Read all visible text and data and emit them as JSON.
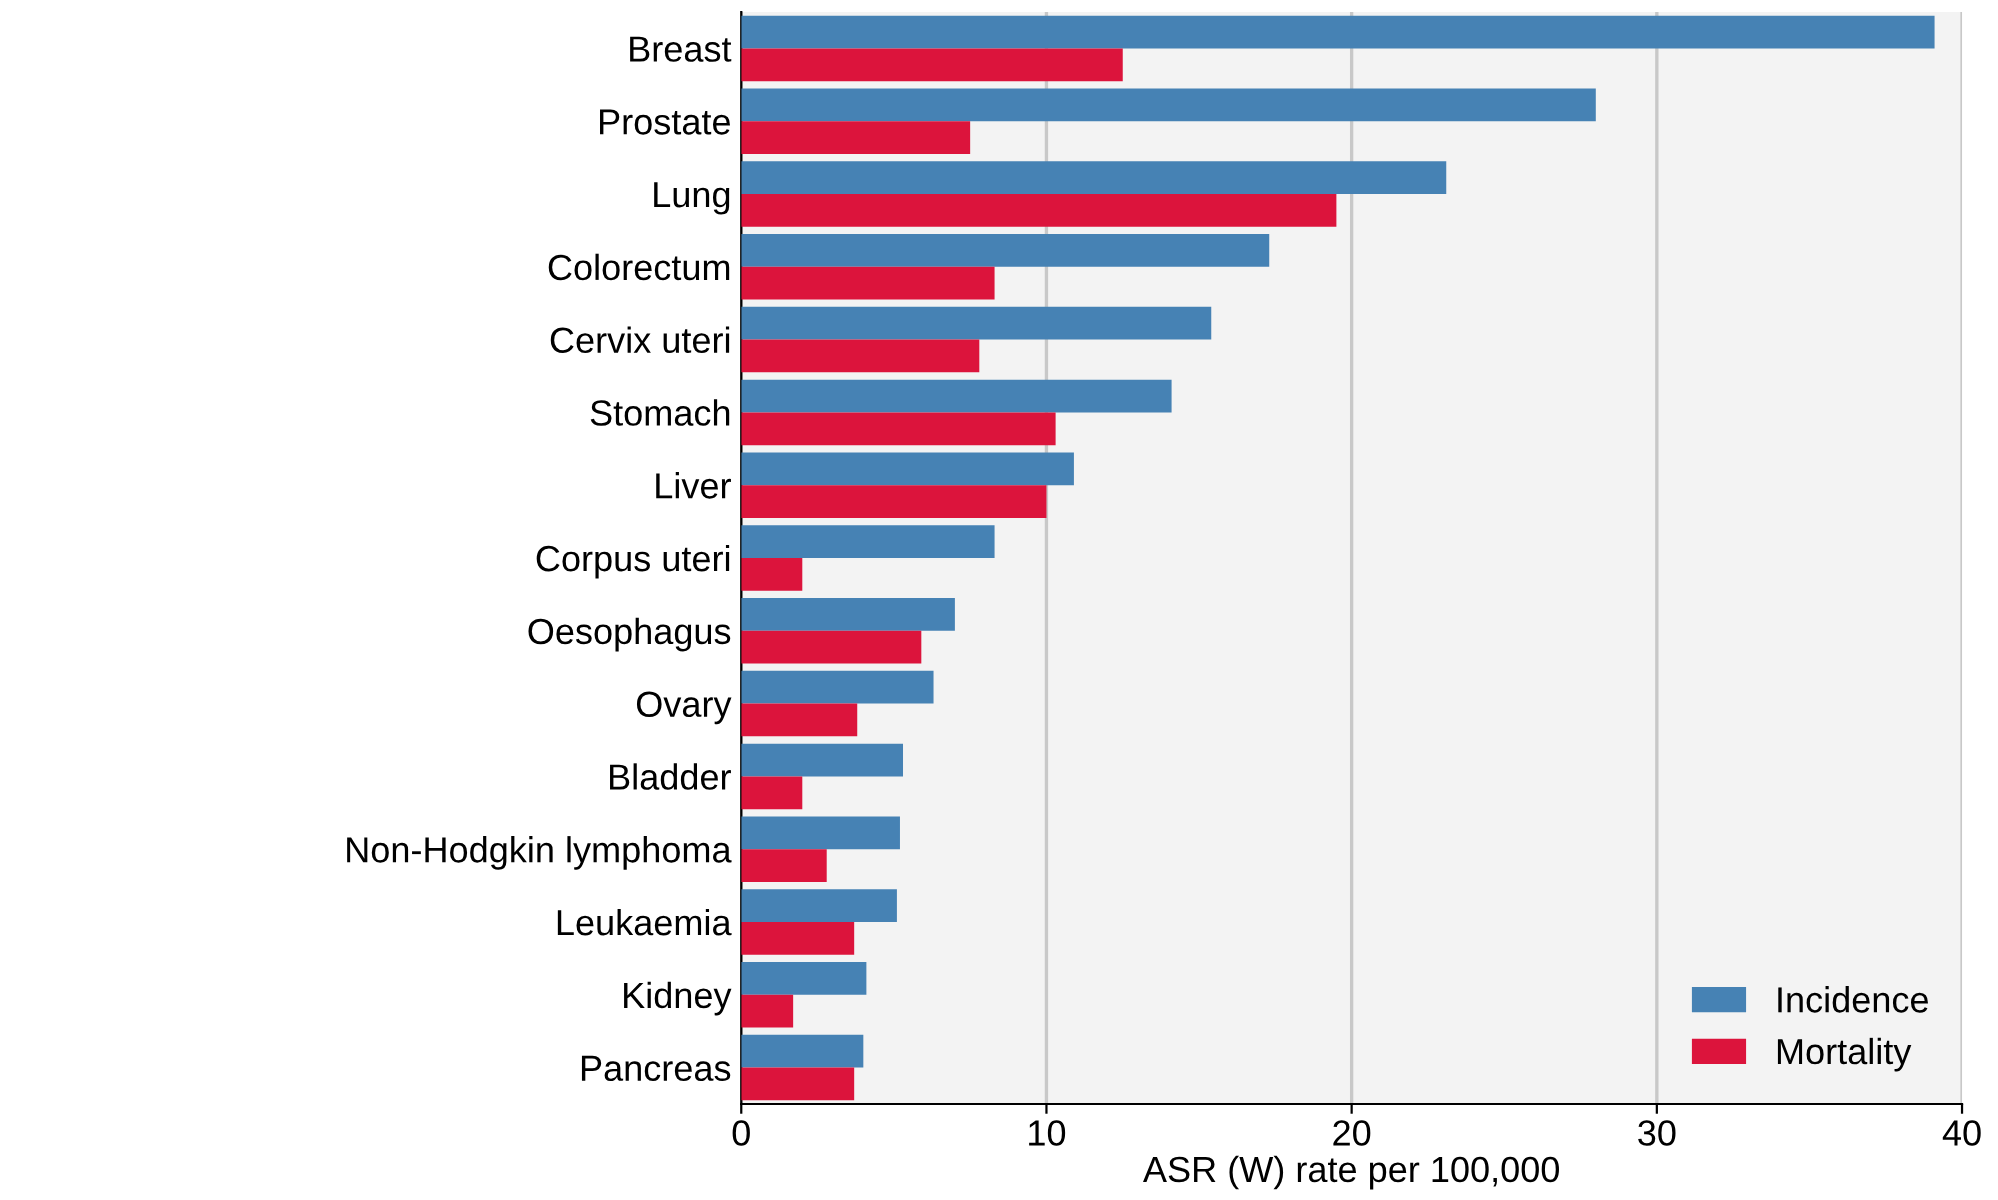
{
  "chart_data": {
    "type": "bar",
    "orientation": "horizontal",
    "xlabel": "ASR (W) rate per 100,000",
    "categories": [
      "Breast",
      "Prostate",
      "Lung",
      "Colorectum",
      "Cervix uteri",
      "Stomach",
      "Liver",
      "Corpus uteri",
      "Oesophagus",
      "Ovary",
      "Bladder",
      "Non-Hodgkin lymphoma",
      "Leukaemia",
      "Kidney",
      "Pancreas"
    ],
    "series": [
      {
        "name": "Incidence",
        "color": "#4682b4",
        "values": [
          39.1,
          28.0,
          23.1,
          17.3,
          15.4,
          14.1,
          10.9,
          8.3,
          7.0,
          6.3,
          5.3,
          5.2,
          5.1,
          4.1,
          4.0
        ]
      },
      {
        "name": "Mortality",
        "color": "#dc143c",
        "values": [
          12.5,
          7.5,
          19.5,
          8.3,
          7.8,
          10.3,
          10.0,
          2.0,
          5.9,
          3.8,
          2.0,
          2.8,
          3.7,
          1.7,
          3.7
        ]
      }
    ],
    "xlim": [
      0,
      40
    ],
    "xticks": [
      0,
      10,
      20,
      30,
      40
    ],
    "grid": "x",
    "legend": "bottom right"
  }
}
